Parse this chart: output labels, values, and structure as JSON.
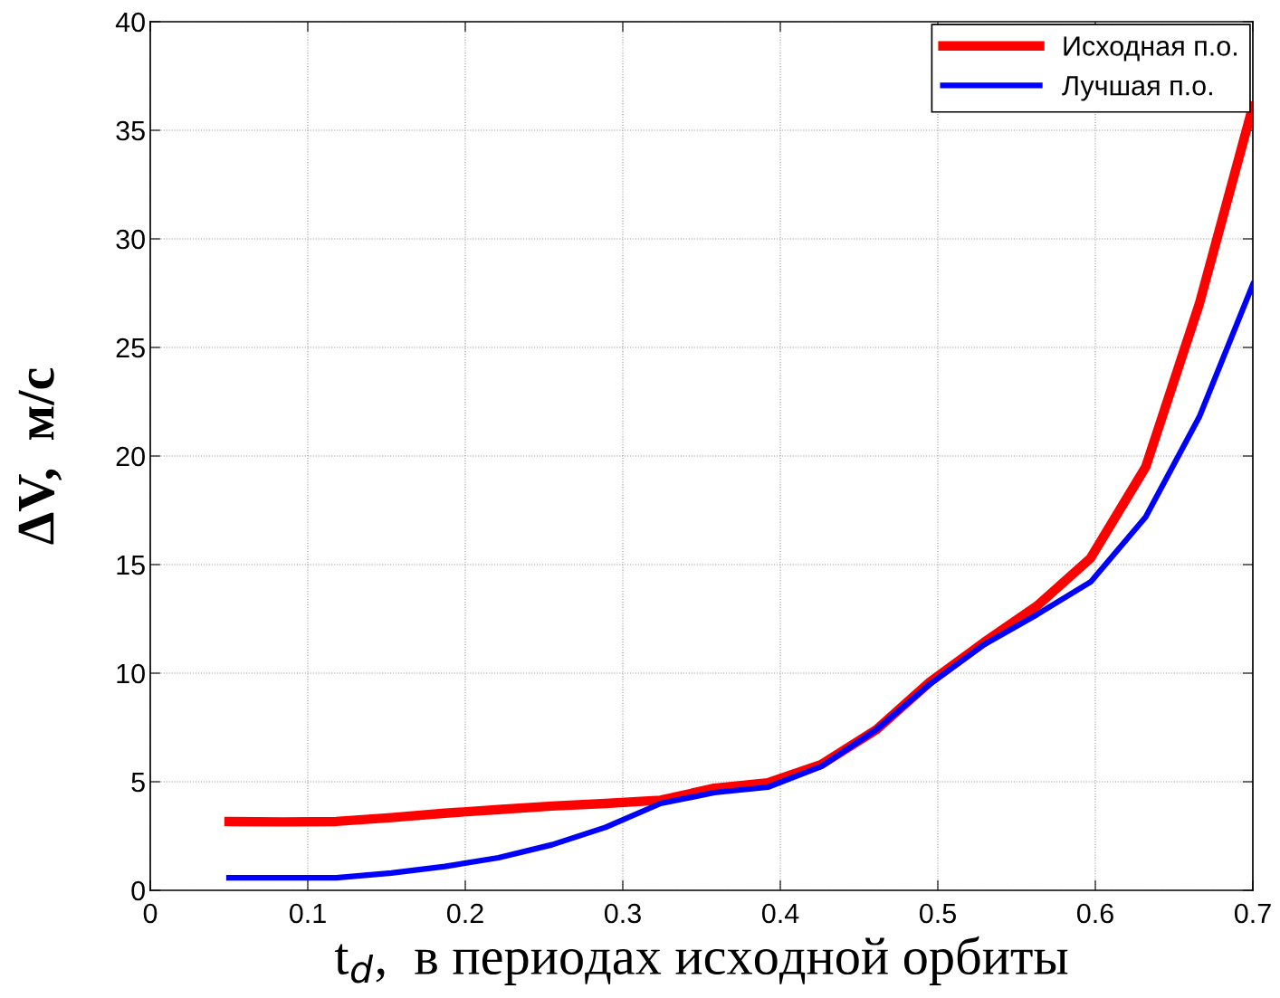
{
  "chart_data": {
    "type": "line",
    "xlabel": "t$_{d}$,  в периодах исходной орбиты",
    "ylabel": "ΔV,  м/с",
    "x": [
      0.05,
      0.084,
      0.118,
      0.153,
      0.187,
      0.221,
      0.255,
      0.289,
      0.324,
      0.358,
      0.392,
      0.426,
      0.461,
      0.495,
      0.529,
      0.563,
      0.597,
      0.632,
      0.666,
      0.7
    ],
    "series": [
      {
        "name": "Исходная п.о.",
        "color": "#ff0000",
        "values": [
          3.17,
          3.15,
          3.17,
          3.35,
          3.55,
          3.72,
          3.88,
          4.0,
          4.15,
          4.7,
          4.95,
          5.8,
          7.4,
          9.6,
          11.4,
          13.1,
          15.3,
          19.5,
          27.0,
          36.1
        ]
      },
      {
        "name": "Лучшая п.о.",
        "color": "#0000ff",
        "values": [
          0.58,
          0.58,
          0.58,
          0.8,
          1.1,
          1.5,
          2.1,
          2.9,
          4.0,
          4.5,
          4.75,
          5.7,
          7.4,
          9.5,
          11.3,
          12.7,
          14.2,
          17.2,
          21.8,
          27.9
        ]
      }
    ],
    "xlim": [
      0,
      0.7
    ],
    "xticks": [
      0,
      0.1,
      0.2,
      0.3,
      0.4,
      0.5,
      0.6,
      0.7
    ],
    "ylim": [
      0,
      40
    ],
    "yticks": [
      0,
      5,
      10,
      15,
      20,
      25,
      30,
      35,
      40
    ],
    "grid": true,
    "legend": "top right",
    "line_style": "solid",
    "marker": "none"
  }
}
